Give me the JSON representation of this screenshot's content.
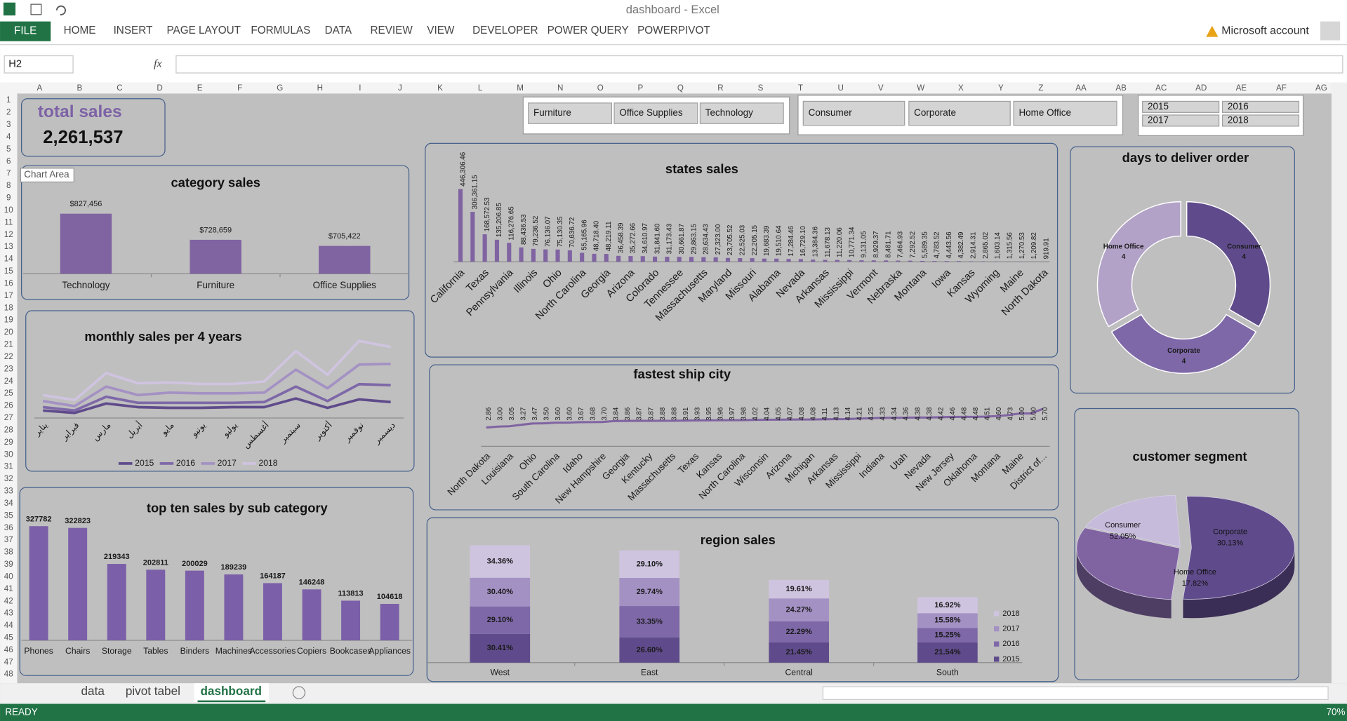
{
  "window": {
    "title": "dashboard - Excel",
    "account": "Microsoft account"
  },
  "ribbon": {
    "file": "FILE",
    "tabs": [
      "HOME",
      "INSERT",
      "PAGE LAYOUT",
      "FORMULAS",
      "DATA",
      "REVIEW",
      "VIEW",
      "DEVELOPER",
      "POWER QUERY",
      "POWERPIVOT"
    ]
  },
  "formula_bar": {
    "name_box": "H2",
    "function_icon": "fx"
  },
  "sheet": {
    "columns": [
      "A",
      "B",
      "C",
      "D",
      "E",
      "F",
      "G",
      "H",
      "I",
      "J",
      "K",
      "L",
      "M",
      "N",
      "O",
      "P",
      "Q",
      "R",
      "S",
      "T",
      "U",
      "V",
      "W",
      "X",
      "Y",
      "Z",
      "AA",
      "AB",
      "AC",
      "AD",
      "AE",
      "AF",
      "AG"
    ],
    "rows": [
      1,
      2,
      3,
      4,
      5,
      6,
      7,
      8,
      9,
      10,
      11,
      12,
      13,
      14,
      15,
      16,
      17,
      18,
      19,
      20,
      21,
      22,
      23,
      24,
      25,
      26,
      27,
      28,
      29,
      30,
      31,
      32,
      33,
      34,
      35,
      36,
      37,
      38,
      39,
      40,
      41,
      42,
      43,
      44,
      45,
      46,
      47,
      48
    ]
  },
  "tooltip": "Chart Area",
  "kpi": {
    "title": "total sales",
    "value": "2,261,537"
  },
  "slicers": [
    [
      "Furniture",
      "Office Supplies",
      "Technology"
    ],
    [
      "Consumer",
      "Corporate",
      "Home Office"
    ],
    [
      "2015",
      "2016",
      "2017",
      "2018"
    ]
  ],
  "charts": {
    "category_sales": {
      "type": "bar",
      "title": "category sales",
      "categories": [
        "Technology",
        "Furniture",
        "Office Supplies"
      ],
      "values": [
        827456,
        728659,
        705422
      ],
      "value_labels": [
        "$827,456",
        "$728,659",
        "$705,422"
      ],
      "ylim": [
        600000,
        850000
      ],
      "color": "#8064a2"
    },
    "states_sales": {
      "type": "bar",
      "title": "states sales",
      "categories": [
        "California",
        null,
        "Texas",
        null,
        "Pennsylvania",
        null,
        "Illinois",
        null,
        "Ohio",
        null,
        "North Carolina",
        null,
        "Georgia",
        null,
        "Arizona",
        null,
        "Colorado",
        null,
        "Tennessee",
        null,
        "Massachusetts",
        null,
        "Maryland",
        null,
        "Missouri",
        null,
        "Alabama",
        null,
        "Nevada",
        null,
        "Arkansas",
        null,
        "Mississippi",
        null,
        "Vermont",
        null,
        "Nebraska",
        null,
        "Montana",
        null,
        "Iowa",
        null,
        "Kansas",
        null,
        "Wyoming",
        null,
        "Maine",
        null,
        "North Dakota"
      ],
      "values": [
        446306.46,
        306361.15,
        168572.53,
        135206.85,
        116276.65,
        88436.53,
        79236.52,
        76136.07,
        75130.35,
        70636.72,
        55165.96,
        48718.4,
        48219.11,
        36458.39,
        35272.66,
        34610.97,
        31841.6,
        31173.43,
        30661.87,
        29863.15,
        28634.43,
        27323,
        23705.52,
        22525.03,
        22205.15,
        19683.39,
        19510.64,
        17284.46,
        16729.1,
        13384.36,
        11678.13,
        11220.06,
        10771.34,
        9131.05,
        8929.37,
        8481.71,
        7464.93,
        7292.52,
        5589.35,
        4783.52,
        4443.56,
        4382.49,
        2914.31,
        2865.02,
        1603.14,
        1315.56,
        1270.53,
        1209.82,
        919.91
      ],
      "value_labels": [
        "446,306.46",
        "306,361.15",
        "168,572.53",
        "135,206.85",
        "116,276.65",
        "88,436.53",
        "79,236.52",
        "76,136.07",
        "75,130.35",
        "70,636.72",
        "55,165.96",
        "48,718.40",
        "48,219.11",
        "36,458.39",
        "35,272.66",
        "34,610.97",
        "31,841.60",
        "31,173.43",
        "30,661.87",
        "29,863.15",
        "28,634.43",
        "27,323.00",
        "23,705.52",
        "22,525.03",
        "22,205.15",
        "19,683.39",
        "19,510.64",
        "17,284.46",
        "16,729.10",
        "13,384.36",
        "11,678.13",
        "11,220.06",
        "10,771.34",
        "9,131.05",
        "8,929.37",
        "8,481.71",
        "7,464.93",
        "7,292.52",
        "5,589.35",
        "4,783.52",
        "4,443.56",
        "4,382.49",
        "2,914.31",
        "2,865.02",
        "1,603.14",
        "1,315.56",
        "1,270.53",
        "1,209.82",
        "919.91"
      ],
      "ylim": [
        0,
        500000
      ],
      "color": "#8064a2"
    },
    "monthly_sales": {
      "type": "line",
      "stacked": true,
      "title": "monthly sales per 4 years",
      "categories": [
        "يناير",
        "فبراير",
        "مارس",
        "أبريل",
        "مايو",
        "يونيو",
        "يوليو",
        "أغسطس",
        "سبتمبر",
        "أكتوبر",
        "نوفمبر",
        "ديسمبر"
      ],
      "series": [
        {
          "name": "2015",
          "color": "#5f4b8b",
          "values": [
            31000,
            21000,
            60000,
            45000,
            42000,
            42000,
            45000,
            45000,
            81000,
            42000,
            77000,
            66000
          ]
        },
        {
          "name": "2016",
          "color": "#7e68a8",
          "values": [
            14000,
            10000,
            28000,
            18000,
            21000,
            21000,
            18000,
            21000,
            49000,
            28000,
            63000,
            70000
          ]
        },
        {
          "name": "2017",
          "color": "#a491c4",
          "values": [
            25000,
            18000,
            42000,
            32000,
            42000,
            39000,
            39000,
            39000,
            70000,
            53000,
            81000,
            88000
          ]
        },
        {
          "name": "2018",
          "color": "#cfc4e0",
          "values": [
            25000,
            25000,
            56000,
            49000,
            42000,
            39000,
            39000,
            46000,
            77000,
            56000,
            98000,
            70000
          ]
        }
      ],
      "ylim": [
        0,
        380000
      ]
    },
    "top_ten_subcategory": {
      "type": "bar",
      "title": "top ten sales by sub category",
      "categories": [
        "Phones",
        "Chairs",
        "Storage",
        "Tables",
        "Binders",
        "Machines",
        "Accessories",
        "Copiers",
        "Bookcases",
        "Appliances"
      ],
      "values": [
        327782,
        322823,
        219343,
        202811,
        200029,
        189239,
        164187,
        146248,
        113813,
        104618
      ],
      "ylim": [
        0,
        350000
      ],
      "color": "#7b5fa8"
    },
    "fastest_ship": {
      "type": "line",
      "title": "fastest ship city",
      "categories": [
        "North Dakota",
        null,
        "Louisiana",
        null,
        "Ohio",
        null,
        "South Carolina",
        null,
        "Idaho",
        null,
        "New Hampshire",
        null,
        "Georgia",
        null,
        "Kentucky",
        null,
        "Massachusetts",
        null,
        "Texas",
        null,
        "Kansas",
        null,
        "North Carolina",
        null,
        "Wisconsin",
        null,
        "Arizona",
        null,
        "Michigan",
        null,
        "Arkansas",
        null,
        "Mississippi",
        null,
        "Indiana",
        null,
        "Utah",
        null,
        "Nevada",
        null,
        "New Jersey",
        null,
        "Oklahoma",
        null,
        "Montana",
        null,
        "Maine",
        null,
        "District of..."
      ],
      "values": [
        2.86,
        3,
        3.05,
        3.27,
        3.47,
        3.5,
        3.6,
        3.6,
        3.67,
        3.68,
        3.7,
        3.84,
        3.86,
        3.87,
        3.87,
        3.88,
        3.88,
        3.91,
        3.93,
        3.95,
        3.96,
        3.97,
        3.98,
        4.02,
        4.04,
        4.05,
        4.07,
        4.08,
        4.08,
        4.11,
        4.13,
        4.14,
        4.21,
        4.25,
        4.33,
        4.34,
        4.36,
        4.38,
        4.38,
        4.42,
        4.46,
        4.48,
        4.48,
        4.51,
        4.6,
        4.73,
        5,
        5,
        5.7
      ],
      "value_labels": [
        "2.86",
        "3.00",
        "3.05",
        "3.27",
        "3.47",
        "3.50",
        "3.60",
        "3.60",
        "3.67",
        "3.68",
        "3.70",
        "3.84",
        "3.86",
        "3.87",
        "3.87",
        "3.88",
        "3.88",
        "3.91",
        "3.93",
        "3.95",
        "3.96",
        "3.97",
        "3.98",
        "4.02",
        "4.04",
        "4.05",
        "4.07",
        "4.08",
        "4.08",
        "4.11",
        "4.13",
        "4.14",
        "4.21",
        "4.25",
        "4.33",
        "4.34",
        "4.36",
        "4.38",
        "4.38",
        "4.42",
        "4.46",
        "4.48",
        "4.48",
        "4.51",
        "4.60",
        "4.73",
        "5.00",
        "5.00",
        "5.70"
      ],
      "ylim": [
        0,
        6
      ],
      "color": "#8064a2"
    },
    "region_sales": {
      "type": "bar",
      "stacked": true,
      "title": "region sales",
      "categories": [
        "West",
        "East",
        "Central",
        "South"
      ],
      "series": [
        {
          "name": "2015",
          "color": "#5f4b8b",
          "values": [
            30.41,
            26.6,
            21.45,
            21.54
          ],
          "value_labels": [
            "30.41%",
            "26.60%",
            "21.45%",
            "21.54%"
          ]
        },
        {
          "name": "2016",
          "color": "#7e68a8",
          "values": [
            29.1,
            33.35,
            22.29,
            15.25
          ],
          "value_labels": [
            "29.10%",
            "33.35%",
            "22.29%",
            "15.25%"
          ]
        },
        {
          "name": "2017",
          "color": "#a491c4",
          "values": [
            30.4,
            29.74,
            24.27,
            15.58
          ],
          "value_labels": [
            "30.40%",
            "29.74%",
            "24.27%",
            "15.58%"
          ]
        },
        {
          "name": "2018",
          "color": "#cfc4e0",
          "values": [
            34.36,
            29.1,
            19.61,
            16.92
          ],
          "value_labels": [
            "34.36%",
            "29.10%",
            "19.61%",
            "16.92%"
          ]
        }
      ],
      "ylim": [
        0,
        140
      ]
    },
    "days_to_deliver": {
      "type": "donut",
      "title": "days to deliver order",
      "categories": [
        "Consumer",
        "Corporate",
        "Home Office"
      ],
      "values": [
        4,
        4,
        4
      ],
      "colors": [
        "#5f4b8b",
        "#7e68a8",
        "#b3a2c7"
      ]
    },
    "customer_segment": {
      "type": "pie",
      "title": "customer segment",
      "categories": [
        "Consumer",
        "Corporate",
        "Home Office"
      ],
      "values": [
        52.05,
        30.13,
        17.82
      ],
      "value_labels": [
        "52.05%",
        "30.13%",
        "17.82%"
      ],
      "colors": [
        "#5f4b8b",
        "#8064a2",
        "#c7bbdb"
      ]
    }
  },
  "sheet_tabs": [
    "data",
    "pivot tabel",
    "dashboard"
  ],
  "status": {
    "mode": "READY",
    "zoom": "70%"
  }
}
